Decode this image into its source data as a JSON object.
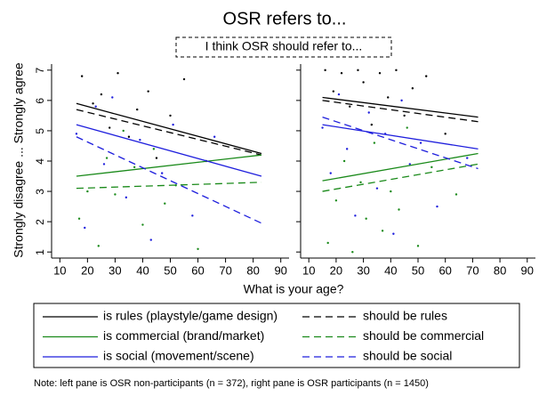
{
  "chart_data": {
    "type": "scatter",
    "title": "OSR refers to...",
    "subtitle": "I think OSR should refer to...",
    "x_label": "What is your age?",
    "y_label": "Strongly disagree ... Strongly agree",
    "note": "Note: left pane is OSR non-participants (n = 372), right pane is OSR participants (n = 1450)",
    "legend": [
      {
        "name": "is rules (playstyle/game design)",
        "color": "#000000",
        "dash": false
      },
      {
        "name": "should be rules",
        "color": "#000000",
        "dash": true
      },
      {
        "name": "is commercial (brand/market)",
        "color": "#1a8a1a",
        "dash": false
      },
      {
        "name": "should be commercial",
        "color": "#1a8a1a",
        "dash": true
      },
      {
        "name": "is social (movement/scene)",
        "color": "#1f1fdd",
        "dash": false
      },
      {
        "name": "should be social",
        "color": "#1f1fdd",
        "dash": true
      }
    ],
    "panels": [
      {
        "xlim": [
          7,
          93
        ],
        "xticks": [
          10,
          20,
          30,
          40,
          50,
          60,
          70,
          80,
          90
        ],
        "ylim": [
          0.8,
          7.2
        ],
        "yticks": [
          1,
          2,
          3,
          4,
          5,
          6,
          7
        ],
        "lines": [
          {
            "x": [
              16,
              83
            ],
            "values": [
              5.9,
              4.25
            ]
          },
          {
            "x": [
              16,
              83
            ],
            "values": [
              5.7,
              4.2
            ]
          },
          {
            "x": [
              16,
              83
            ],
            "values": [
              3.5,
              4.2
            ]
          },
          {
            "x": [
              16,
              83
            ],
            "values": [
              3.1,
              3.3
            ]
          },
          {
            "x": [
              16,
              83
            ],
            "values": [
              5.2,
              3.5
            ]
          },
          {
            "x": [
              16,
              83
            ],
            "values": [
              4.8,
              1.95
            ]
          }
        ],
        "points": [
          {
            "color": "#000000",
            "x": [
              18,
              22,
              25,
              28,
              31,
              35,
              38,
              42,
              45,
              50,
              55,
              63
            ],
            "values": [
              6.8,
              5.9,
              6.2,
              5.1,
              6.9,
              4.8,
              5.7,
              6.3,
              4.1,
              5.5,
              6.7,
              4.0
            ]
          },
          {
            "color": "#1a8a1a",
            "x": [
              17,
              20,
              24,
              27,
              30,
              33,
              37,
              40,
              44,
              48,
              52,
              60
            ],
            "values": [
              2.1,
              3.0,
              1.2,
              4.1,
              2.9,
              5.0,
              3.8,
              1.9,
              4.4,
              2.6,
              3.2,
              1.1
            ]
          },
          {
            "color": "#1f1fdd",
            "x": [
              16,
              19,
              23,
              26,
              29,
              34,
              39,
              43,
              47,
              51,
              58,
              66
            ],
            "values": [
              4.9,
              1.8,
              5.8,
              3.9,
              6.1,
              2.8,
              4.7,
              1.4,
              3.6,
              5.2,
              2.2,
              4.8
            ]
          }
        ]
      },
      {
        "xlim": [
          7,
          93
        ],
        "xticks": [
          10,
          20,
          30,
          40,
          50,
          60,
          70,
          80,
          90
        ],
        "ylim": [
          0.8,
          7.2
        ],
        "yticks": [
          1,
          2,
          3,
          4,
          5,
          6,
          7
        ],
        "lines": [
          {
            "x": [
              15,
              72
            ],
            "values": [
              6.1,
              5.45
            ]
          },
          {
            "x": [
              15,
              72
            ],
            "values": [
              6.0,
              5.3
            ]
          },
          {
            "x": [
              15,
              72
            ],
            "values": [
              3.35,
              4.25
            ]
          },
          {
            "x": [
              15,
              72
            ],
            "values": [
              3.0,
              3.9
            ]
          },
          {
            "x": [
              15,
              72
            ],
            "values": [
              5.2,
              4.4
            ]
          },
          {
            "x": [
              15,
              72
            ],
            "values": [
              5.45,
              3.75
            ]
          }
        ],
        "points": [
          {
            "color": "#000000",
            "x": [
              16,
              19,
              22,
              25,
              28,
              30,
              33,
              36,
              39,
              42,
              45,
              48,
              53,
              60
            ],
            "values": [
              7.0,
              6.3,
              6.9,
              5.8,
              7.0,
              6.6,
              5.2,
              6.9,
              6.1,
              7.0,
              5.5,
              6.4,
              6.8,
              4.9
            ]
          },
          {
            "color": "#1a8a1a",
            "x": [
              17,
              20,
              23,
              26,
              29,
              31,
              34,
              37,
              40,
              43,
              46,
              50,
              55,
              64
            ],
            "values": [
              1.3,
              2.7,
              4.0,
              1.0,
              3.3,
              2.1,
              4.6,
              1.7,
              3.0,
              2.4,
              5.1,
              1.2,
              3.8,
              2.9
            ]
          },
          {
            "color": "#1f1fdd",
            "x": [
              15,
              18,
              21,
              24,
              27,
              32,
              35,
              38,
              41,
              44,
              47,
              51,
              57,
              68
            ],
            "values": [
              5.1,
              3.6,
              6.2,
              4.4,
              2.2,
              5.6,
              3.1,
              4.9,
              1.6,
              6.0,
              3.9,
              4.6,
              2.5,
              4.1
            ]
          }
        ]
      }
    ]
  }
}
